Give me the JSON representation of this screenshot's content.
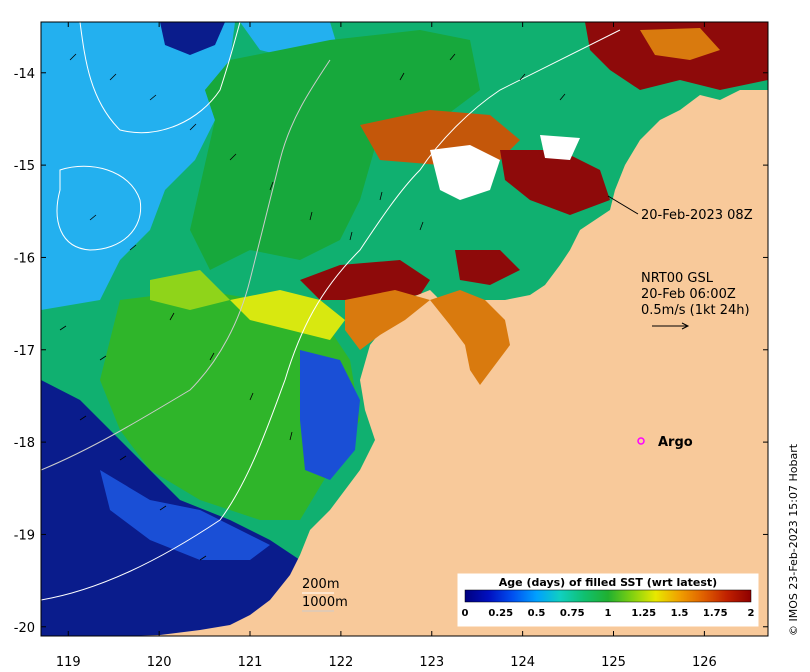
{
  "map": {
    "lon_ticks": [
      "119",
      "120",
      "121",
      "122",
      "123",
      "124",
      "125",
      "126"
    ],
    "lat_ticks": [
      "-14",
      "-15",
      "-16",
      "-17",
      "-18",
      "-19",
      "-20"
    ],
    "lon_range": [
      118.7,
      126.7
    ],
    "lat_range": [
      -20.1,
      -13.45
    ],
    "colors": {
      "land": "#f8c99a",
      "ocean_light": "#23b0ef",
      "ocean_deep": "#0a1c8c",
      "green": "#11a83a",
      "teal": "#10c07a",
      "orange": "#d97a0e",
      "darkred": "#8e0a0a",
      "yellow": "#e6e600",
      "lime": "#7fd11a"
    }
  },
  "annotations": {
    "date_label": "20-Feb-2023 08Z",
    "current_line1": "NRT00 GSL",
    "current_line2": "20-Feb 06:00Z",
    "current_line3": "0.5m/s (1kt 24h)",
    "argo_label": "Argo",
    "argo_marker_icon": "magenta-circle-icon",
    "contour_200": "200m",
    "contour_1000": "1000m"
  },
  "legend": {
    "title": "Age (days) of filled SST (wrt latest)",
    "ticks": [
      "0",
      "0.25",
      "0.5",
      "0.75",
      "1",
      "1.25",
      "1.5",
      "1.75",
      "2"
    ],
    "colors": [
      "#00007f",
      "#0010c0",
      "#0050f0",
      "#00a0ff",
      "#10d0c0",
      "#10c070",
      "#20b030",
      "#80d010",
      "#e8e800",
      "#f0a000",
      "#e06000",
      "#c02000",
      "#8e0000"
    ]
  },
  "credit": "© IMOS 23-Feb-2023 15:07 Hobart"
}
